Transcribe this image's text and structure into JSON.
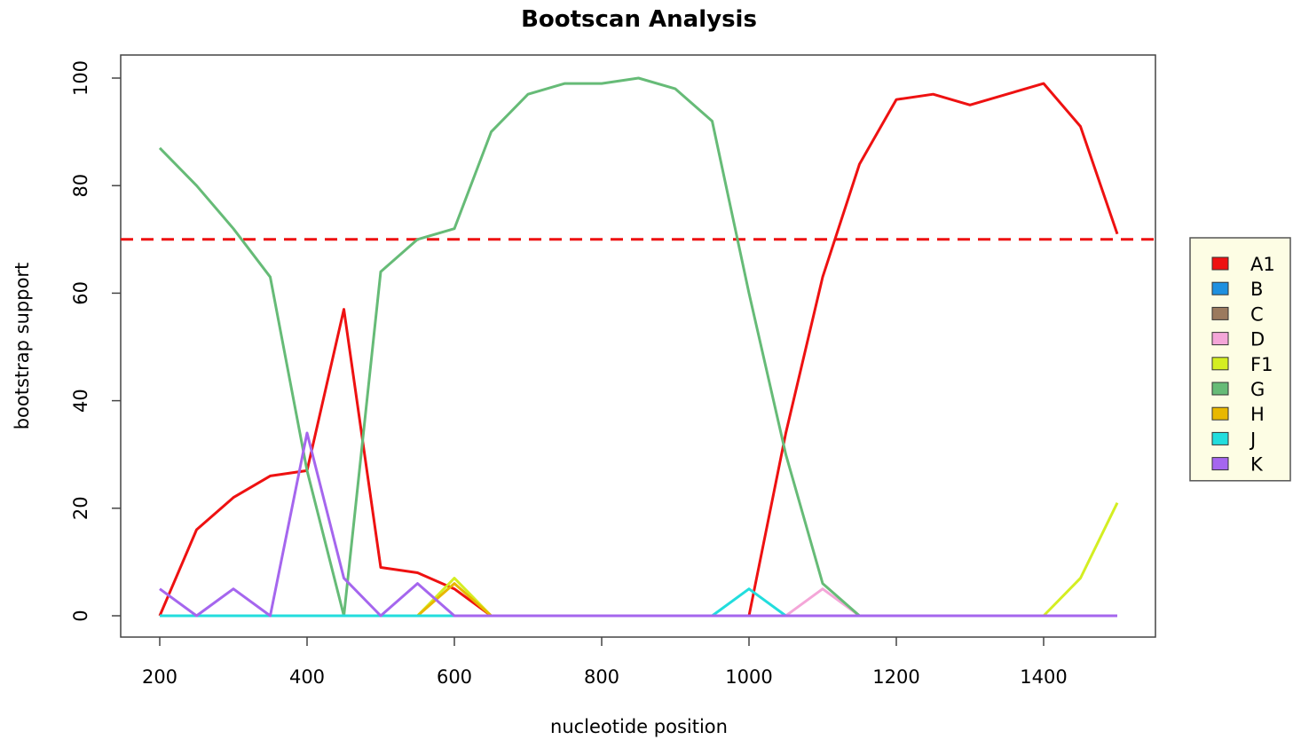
{
  "chart_data": {
    "type": "line",
    "title": "Bootscan Analysis",
    "xlabel": "nucleotide position",
    "ylabel": "bootstrap support",
    "xlim": [
      200,
      1500
    ],
    "ylim": [
      0,
      100
    ],
    "x_ticks": [
      200,
      400,
      600,
      800,
      1000,
      1200,
      1400
    ],
    "y_ticks": [
      0,
      20,
      40,
      60,
      80,
      100
    ],
    "threshold": {
      "value": 70,
      "color": "#ee1111",
      "style": "dashed"
    },
    "legend_position": "right",
    "legend_bg": "#fdfde4",
    "x": [
      200,
      250,
      300,
      350,
      400,
      450,
      500,
      550,
      600,
      650,
      700,
      750,
      800,
      850,
      900,
      950,
      1000,
      1050,
      1100,
      1150,
      1200,
      1250,
      1300,
      1350,
      1400,
      1450,
      1500
    ],
    "series": [
      {
        "name": "A1",
        "color": "#ee1111",
        "values": [
          0,
          16,
          22,
          26,
          27,
          57,
          9,
          8,
          5,
          0,
          0,
          0,
          0,
          0,
          0,
          0,
          0,
          34,
          63,
          84,
          96,
          97,
          95,
          97,
          99,
          91,
          71
        ]
      },
      {
        "name": "B",
        "color": "#1e90e0",
        "values": [
          0,
          0,
          0,
          0,
          0,
          0,
          0,
          0,
          0,
          0,
          0,
          0,
          0,
          0,
          0,
          0,
          0,
          0,
          0,
          0,
          0,
          0,
          0,
          0,
          0,
          0,
          0
        ]
      },
      {
        "name": "C",
        "color": "#9b7a5e",
        "values": [
          0,
          0,
          0,
          0,
          0,
          0,
          0,
          0,
          0,
          0,
          0,
          0,
          0,
          0,
          0,
          0,
          0,
          0,
          0,
          0,
          0,
          0,
          0,
          0,
          0,
          0,
          0
        ]
      },
      {
        "name": "D",
        "color": "#f4a6d8",
        "values": [
          0,
          0,
          0,
          0,
          0,
          0,
          0,
          0,
          0,
          0,
          0,
          0,
          0,
          0,
          0,
          0,
          0,
          0,
          5,
          0,
          0,
          0,
          0,
          0,
          0,
          0,
          0
        ]
      },
      {
        "name": "F1",
        "color": "#d4ee22",
        "values": [
          0,
          0,
          0,
          0,
          0,
          0,
          0,
          0,
          7,
          0,
          0,
          0,
          0,
          0,
          0,
          0,
          0,
          0,
          0,
          0,
          0,
          0,
          0,
          0,
          0,
          7,
          21
        ]
      },
      {
        "name": "G",
        "color": "#66bb77",
        "values": [
          87,
          80,
          72,
          63,
          27,
          0,
          64,
          70,
          72,
          90,
          97,
          99,
          99,
          100,
          98,
          92,
          60,
          30,
          6,
          0,
          0,
          0,
          0,
          0,
          0,
          0,
          0
        ]
      },
      {
        "name": "H",
        "color": "#e8b800",
        "values": [
          0,
          0,
          0,
          0,
          0,
          0,
          0,
          0,
          6,
          0,
          0,
          0,
          0,
          0,
          0,
          0,
          0,
          0,
          0,
          0,
          0,
          0,
          0,
          0,
          0,
          0,
          0
        ]
      },
      {
        "name": "J",
        "color": "#22dddd",
        "values": [
          0,
          0,
          0,
          0,
          0,
          0,
          0,
          0,
          0,
          0,
          0,
          0,
          0,
          0,
          0,
          0,
          5,
          0,
          0,
          0,
          0,
          0,
          0,
          0,
          0,
          0,
          0
        ]
      },
      {
        "name": "K",
        "color": "#a566ee",
        "values": [
          5,
          0,
          5,
          0,
          34,
          7,
          0,
          6,
          0,
          0,
          0,
          0,
          0,
          0,
          0,
          0,
          0,
          0,
          0,
          0,
          0,
          0,
          0,
          0,
          0,
          0,
          0
        ]
      }
    ]
  }
}
